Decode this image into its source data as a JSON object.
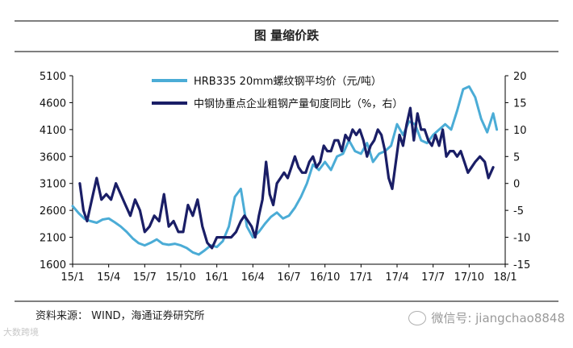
{
  "header": {
    "title": "图    量缩价跌"
  },
  "footer": {
    "source": "资料来源：  WIND，海通证券研究所"
  },
  "watermarks": {
    "left": "大数跨境",
    "right": "微信号: jiangchao8848"
  },
  "icons": {
    "wechat": "wechat-icon"
  },
  "chart_data": {
    "type": "line",
    "title": "图    量缩价跌",
    "x_ticks": [
      "15/1",
      "15/4",
      "15/7",
      "15/10",
      "16/1",
      "16/4",
      "16/7",
      "16/10",
      "17/1",
      "17/4",
      "17/7",
      "17/10",
      "18/1"
    ],
    "x_range": [
      0,
      36
    ],
    "y_left": {
      "ticks": [
        "5100",
        "4600",
        "4100",
        "3600",
        "3100",
        "2600",
        "2100",
        "1600"
      ],
      "range": [
        1600,
        5100
      ]
    },
    "y_right": {
      "ticks": [
        "20",
        "15",
        "10",
        "5",
        "0",
        "-5",
        "-10",
        "-15"
      ],
      "range": [
        -15,
        20
      ]
    },
    "grid": false,
    "legend_position": "top",
    "series": [
      {
        "name": "HRB335 20mm螺纹钢平均价（元/吨）",
        "axis": "left",
        "color": "#4bacd6",
        "x": [
          0,
          0.5,
          1,
          1.5,
          2,
          2.5,
          3,
          3.5,
          4,
          4.5,
          5,
          5.5,
          6,
          6.5,
          7,
          7.5,
          8,
          8.5,
          9,
          9.5,
          10,
          10.5,
          11,
          11.5,
          12,
          12.5,
          13,
          13.5,
          14,
          14.5,
          15,
          15.5,
          16,
          16.5,
          17,
          17.5,
          18,
          18.5,
          19,
          19.5,
          20,
          20.5,
          21,
          21.5,
          22,
          22.5,
          23,
          23.5,
          24,
          24.5,
          25,
          25.5,
          26,
          26.5,
          27,
          27.5,
          28,
          28.5,
          29,
          29.5,
          30,
          30.5,
          31,
          31.5,
          32,
          32.5,
          33,
          33.5,
          34,
          34.5,
          35,
          35.3
        ],
        "values": [
          2680,
          2550,
          2440,
          2400,
          2370,
          2430,
          2450,
          2380,
          2300,
          2200,
          2080,
          1990,
          1950,
          2000,
          2060,
          1980,
          1960,
          1980,
          1950,
          1900,
          1820,
          1780,
          1860,
          1950,
          1920,
          2030,
          2300,
          2850,
          3000,
          2300,
          2100,
          2200,
          2350,
          2480,
          2560,
          2450,
          2500,
          2650,
          2850,
          3100,
          3450,
          3350,
          3500,
          3350,
          3600,
          3650,
          3900,
          3700,
          3650,
          3850,
          3500,
          3650,
          3700,
          3800,
          4200,
          4000,
          4250,
          4200,
          3900,
          3850,
          4000,
          4100,
          4200,
          4100,
          4450,
          4850,
          4900,
          4700,
          4300,
          4050,
          4400,
          4100
        ]
      },
      {
        "name": "中钢协重点企业粗钢产量旬度同比（%，右）",
        "axis": "right",
        "color": "#1a1e66",
        "x": [
          0.6,
          0.9,
          1.2,
          1.6,
          2.0,
          2.4,
          2.8,
          3.2,
          3.6,
          4.0,
          4.4,
          4.8,
          5.2,
          5.6,
          6.0,
          6.4,
          6.8,
          7.2,
          7.6,
          8.0,
          8.4,
          8.8,
          9.2,
          9.6,
          10.0,
          10.4,
          10.8,
          11.2,
          11.6,
          12.0,
          12.4,
          12.8,
          13.2,
          13.6,
          14.0,
          14.3,
          14.6,
          14.9,
          15.2,
          15.5,
          15.8,
          16.1,
          16.4,
          16.7,
          17.0,
          17.3,
          17.6,
          17.9,
          18.2,
          18.5,
          18.8,
          19.1,
          19.4,
          19.7,
          20.0,
          20.3,
          20.6,
          20.9,
          21.2,
          21.5,
          21.8,
          22.1,
          22.4,
          22.7,
          23.0,
          23.3,
          23.6,
          23.9,
          24.2,
          24.5,
          24.8,
          25.1,
          25.4,
          25.7,
          26.0,
          26.3,
          26.6,
          26.9,
          27.2,
          27.5,
          27.8,
          28.1,
          28.4,
          28.7,
          29.0,
          29.3,
          29.6,
          29.9,
          30.2,
          30.5,
          30.8,
          31.1,
          31.4,
          31.7,
          32.0,
          32.3,
          32.6,
          32.9,
          33.2,
          33.5,
          33.9,
          34.3,
          34.6,
          35.0
        ],
        "values": [
          0,
          -5,
          -7,
          -3,
          1,
          -3,
          -2,
          -3,
          0,
          -2,
          -4,
          -6,
          -3,
          -5,
          -9,
          -8,
          -6,
          -7,
          -2,
          -8,
          -7,
          -9,
          -9,
          -4,
          -6,
          -3,
          -8,
          -11,
          -12,
          -10,
          -10,
          -10,
          -10,
          -9,
          -7,
          -6,
          -7,
          -8,
          -10,
          -6,
          -3,
          4,
          -2,
          -4,
          0,
          1,
          2,
          1,
          3,
          5,
          3,
          2,
          2,
          4,
          5,
          3,
          4,
          7,
          6,
          6,
          8,
          8,
          6,
          9,
          8,
          10,
          9,
          10,
          8,
          5,
          7,
          8,
          10,
          9,
          6,
          1,
          -1,
          4,
          9,
          7,
          11,
          14,
          8,
          13,
          10,
          10,
          8,
          7,
          9,
          7,
          10,
          5,
          6,
          6,
          5,
          6,
          4,
          2,
          3,
          4,
          5,
          4,
          1,
          3
        ]
      }
    ]
  }
}
